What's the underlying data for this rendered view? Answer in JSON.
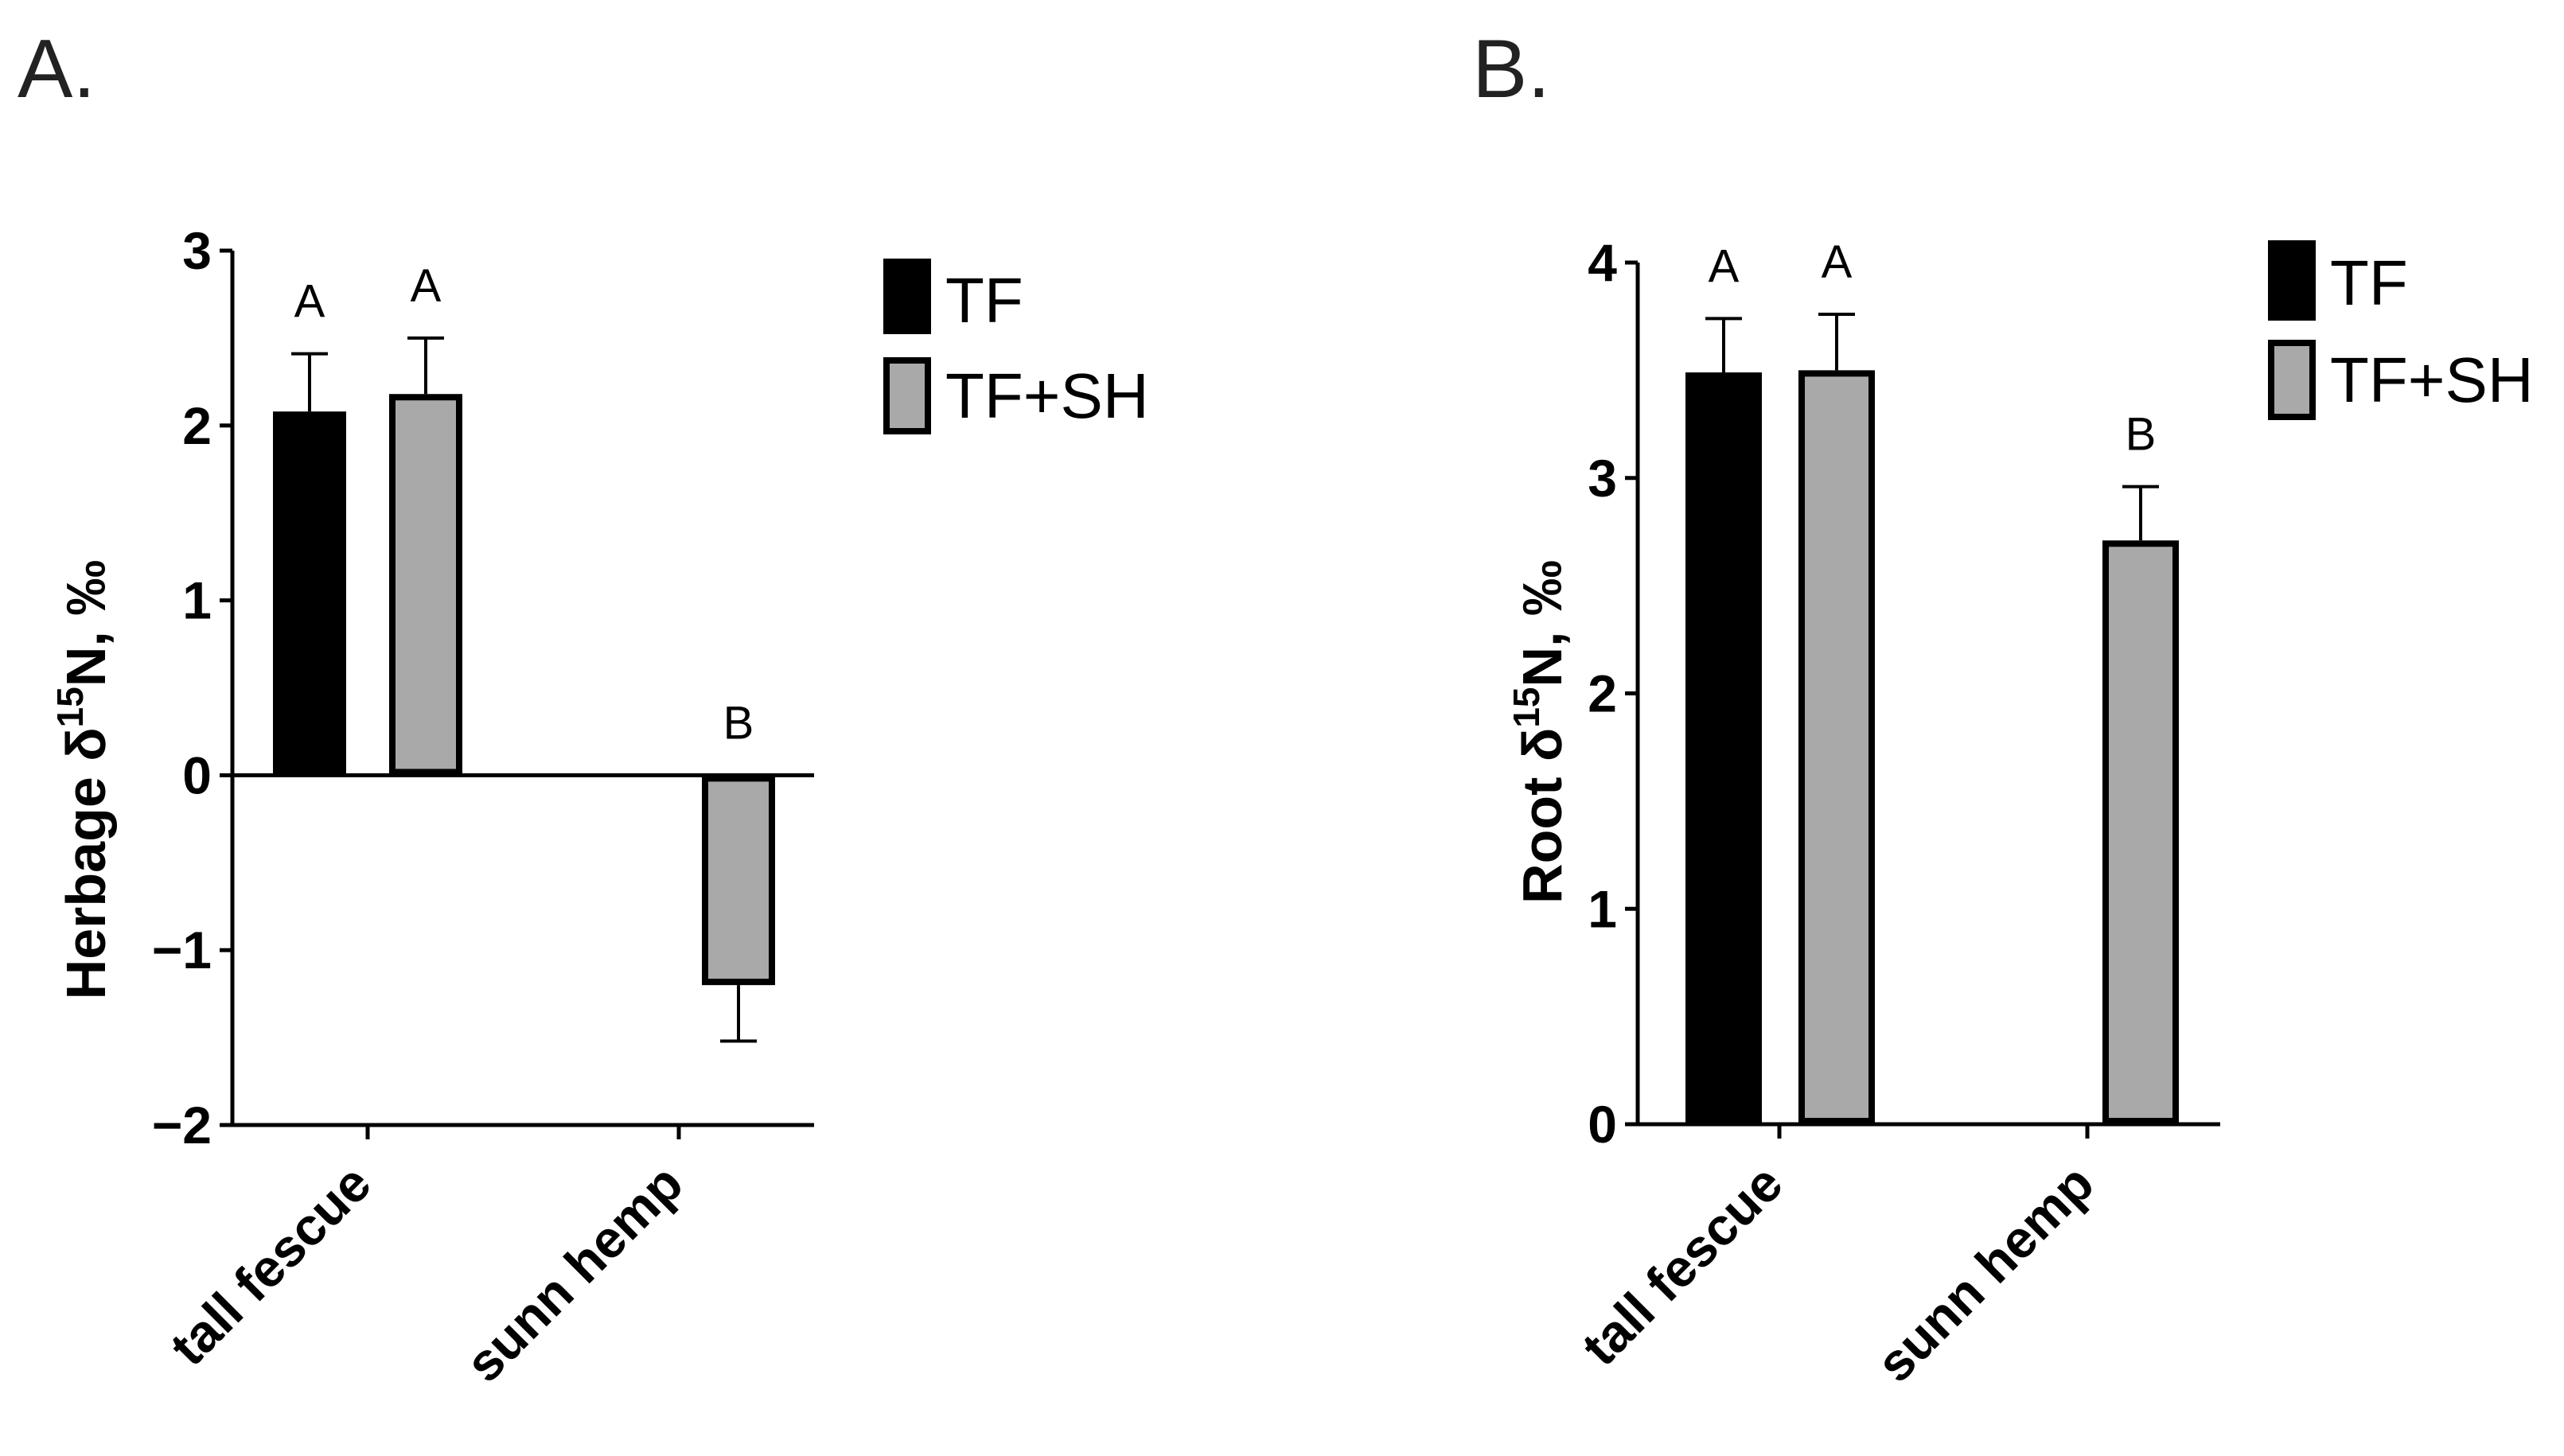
{
  "colors": {
    "TF": "#000000",
    "TF+SH": "#a9a9a9",
    "bar_outline": "#000000"
  },
  "chart_data": [
    {
      "panel_label": "A.",
      "type": "bar",
      "title": "",
      "ylabel_prefix": "Herbage δ",
      "ylabel_sup": "15",
      "ylabel_suffix": "N, ‰",
      "ylim": [
        -2,
        3
      ],
      "yticks": [
        {
          "value": 3,
          "label": "3"
        },
        {
          "value": 2,
          "label": "2"
        },
        {
          "value": 1,
          "label": "1"
        },
        {
          "value": 0,
          "label": "0"
        },
        {
          "value": -1,
          "label": "−1"
        },
        {
          "value": -2,
          "label": "−2"
        }
      ],
      "categories": [
        "tall fescue",
        "sunn hemp"
      ],
      "legend": [
        "TF",
        "TF+SH"
      ],
      "bars": [
        {
          "category": "tall fescue",
          "series": "TF",
          "value": 2.08,
          "error": 0.33,
          "letter": "A"
        },
        {
          "category": "tall fescue",
          "series": "TF+SH",
          "value": 2.18,
          "error": 0.32,
          "letter": "A"
        },
        {
          "category": "sunn hemp",
          "series": "TF+SH",
          "value": -1.2,
          "error": 0.32,
          "letter": "B"
        }
      ]
    },
    {
      "panel_label": "B.",
      "type": "bar",
      "title": "",
      "ylabel_prefix": "Root δ",
      "ylabel_sup": "15",
      "ylabel_suffix": "N, ‰",
      "ylim": [
        0,
        4
      ],
      "yticks": [
        {
          "value": 4,
          "label": "4"
        },
        {
          "value": 3,
          "label": "3"
        },
        {
          "value": 2,
          "label": "2"
        },
        {
          "value": 1,
          "label": "1"
        },
        {
          "value": 0,
          "label": "0"
        }
      ],
      "categories": [
        "tall fescue",
        "sunn hemp"
      ],
      "legend": [
        "TF",
        "TF+SH"
      ],
      "bars": [
        {
          "category": "tall fescue",
          "series": "TF",
          "value": 3.49,
          "error": 0.25,
          "letter": "A"
        },
        {
          "category": "tall fescue",
          "series": "TF+SH",
          "value": 3.5,
          "error": 0.26,
          "letter": "A"
        },
        {
          "category": "sunn hemp",
          "series": "TF+SH",
          "value": 2.71,
          "error": 0.25,
          "letter": "B"
        }
      ]
    }
  ]
}
